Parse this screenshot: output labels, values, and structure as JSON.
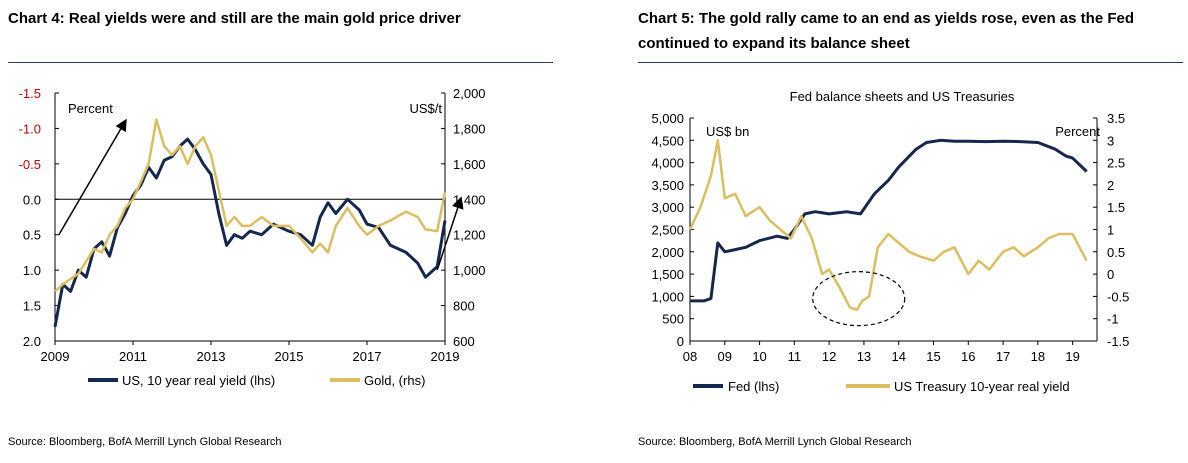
{
  "colors": {
    "navy": "#15274e",
    "gold": "#dcbe5e",
    "red": "#cc0000",
    "rule": "#2a3a5c",
    "ellipse": "#000000"
  },
  "chart4": {
    "title": "Chart 4: Real yields were and still are the main gold price driver",
    "source": "Source: Bloomberg, BofA Merrill Lynch Global Research",
    "lhs_label": "Percent",
    "rhs_label": "US$/t",
    "legend": [
      "US, 10 year real yield (lhs)",
      "Gold, (rhs)"
    ]
  },
  "chart5": {
    "title_line1": "Chart 5: The gold rally came to an end as yields rose, even as the Fed",
    "title_line2": "continued to expand its balance sheet",
    "subtitle": "Fed balance sheets and US Treasuries",
    "source": "Source: Bloomberg, BofA Merrill Lynch Global Research",
    "lhs_label": "US$ bn",
    "rhs_label": "Percent",
    "legend": [
      "Fed (lhs)",
      "US Treasury 10-year real yield"
    ]
  },
  "chart_data": [
    {
      "type": "line",
      "title": "Chart 4: Real yields were and still are the main gold price driver",
      "xlabel": "",
      "ylabel": "Percent",
      "y2label": "US$/t",
      "xlim": [
        2009,
        2019
      ],
      "x_ticks": [
        "2009",
        "2011",
        "2013",
        "2015",
        "2017",
        "2019"
      ],
      "ylim": [
        2.0,
        -1.5
      ],
      "y_inverted": true,
      "y_ticks": [
        "-1.5",
        "-1.0",
        "-0.5",
        "0.0",
        "0.5",
        "1.0",
        "1.5",
        "2.0"
      ],
      "y_negative_ticks_color": "red",
      "y2lim": [
        600,
        2000
      ],
      "y2_ticks": [
        "600",
        "800",
        "1,000",
        "1,200",
        "1,400",
        "1,600",
        "1,800",
        "2,000"
      ],
      "grid": false,
      "zero_line": true,
      "legend_position": "bottom",
      "annotations": [
        "upward arrow 2009-2011",
        "upward arrow 2018-2019"
      ],
      "series": [
        {
          "name": "US, 10 year real yield (lhs)",
          "axis": "lhs",
          "color": "navy",
          "x": [
            2009.0,
            2009.2,
            2009.4,
            2009.6,
            2009.8,
            2010.0,
            2010.2,
            2010.4,
            2010.6,
            2010.8,
            2011.0,
            2011.2,
            2011.4,
            2011.6,
            2011.8,
            2012.0,
            2012.2,
            2012.4,
            2012.6,
            2012.8,
            2013.0,
            2013.2,
            2013.4,
            2013.6,
            2013.8,
            2014.0,
            2014.3,
            2014.6,
            2015.0,
            2015.3,
            2015.6,
            2015.8,
            2016.0,
            2016.2,
            2016.5,
            2016.8,
            2017.0,
            2017.3,
            2017.6,
            2018.0,
            2018.3,
            2018.5,
            2018.8,
            2019.0
          ],
          "y": [
            1.8,
            1.2,
            1.3,
            1.0,
            1.1,
            0.7,
            0.6,
            0.8,
            0.4,
            0.2,
            -0.05,
            -0.2,
            -0.45,
            -0.3,
            -0.55,
            -0.6,
            -0.75,
            -0.85,
            -0.7,
            -0.5,
            -0.35,
            0.2,
            0.65,
            0.5,
            0.55,
            0.45,
            0.5,
            0.35,
            0.45,
            0.5,
            0.65,
            0.25,
            0.05,
            0.2,
            0.0,
            0.15,
            0.35,
            0.4,
            0.65,
            0.75,
            0.9,
            1.1,
            0.95,
            0.3
          ]
        },
        {
          "name": "Gold, (rhs)",
          "axis": "rhs",
          "color": "gold",
          "x": [
            2009.0,
            2009.2,
            2009.4,
            2009.6,
            2009.8,
            2010.0,
            2010.2,
            2010.4,
            2010.6,
            2010.8,
            2011.0,
            2011.2,
            2011.4,
            2011.6,
            2011.8,
            2012.0,
            2012.2,
            2012.4,
            2012.6,
            2012.8,
            2013.0,
            2013.2,
            2013.4,
            2013.6,
            2013.8,
            2014.0,
            2014.3,
            2014.6,
            2015.0,
            2015.3,
            2015.6,
            2015.8,
            2016.0,
            2016.2,
            2016.5,
            2016.8,
            2017.0,
            2017.3,
            2017.6,
            2018.0,
            2018.3,
            2018.5,
            2018.8,
            2019.0
          ],
          "y": [
            880,
            920,
            950,
            980,
            1050,
            1120,
            1100,
            1200,
            1250,
            1350,
            1400,
            1500,
            1600,
            1850,
            1700,
            1650,
            1700,
            1600,
            1700,
            1750,
            1650,
            1450,
            1250,
            1300,
            1250,
            1250,
            1300,
            1250,
            1250,
            1180,
            1100,
            1150,
            1100,
            1250,
            1350,
            1250,
            1200,
            1250,
            1280,
            1330,
            1300,
            1230,
            1220,
            1440
          ]
        }
      ]
    },
    {
      "type": "line",
      "title": "Chart 5: The gold rally came to an end as yields rose, even as the Fed continued to expand its balance sheet",
      "subtitle": "Fed balance sheets and US Treasuries",
      "xlabel": "",
      "ylabel": "US$ bn",
      "y2label": "Percent",
      "xlim": [
        2008,
        2019.7
      ],
      "x_ticks": [
        "08",
        "09",
        "10",
        "11",
        "12",
        "13",
        "14",
        "15",
        "16",
        "17",
        "18",
        "19"
      ],
      "ylim": [
        0,
        5000
      ],
      "y_ticks": [
        "0",
        "500",
        "1,000",
        "1,500",
        "2,000",
        "2,500",
        "3,000",
        "3,500",
        "4,000",
        "4,500",
        "5,000"
      ],
      "y2lim": [
        -1.5,
        3.5
      ],
      "y2_ticks": [
        "-1.5",
        "-1",
        "-0.5",
        "0",
        "0.5",
        "1",
        "1.5",
        "2",
        "2.5",
        "3",
        "3.5"
      ],
      "grid": false,
      "legend_position": "bottom",
      "annotations": [
        "dashed ellipse around 2012-2013 yield trough"
      ],
      "series": [
        {
          "name": "Fed (lhs)",
          "axis": "lhs",
          "color": "navy",
          "x": [
            2008.0,
            2008.4,
            2008.6,
            2008.8,
            2009.0,
            2009.3,
            2009.6,
            2010.0,
            2010.5,
            2010.8,
            2011.0,
            2011.3,
            2011.6,
            2012.0,
            2012.5,
            2012.9,
            2013.3,
            2013.7,
            2014.0,
            2014.5,
            2014.8,
            2015.2,
            2015.6,
            2016.0,
            2016.5,
            2017.0,
            2017.5,
            2018.0,
            2018.5,
            2018.8,
            2019.0,
            2019.4
          ],
          "y": [
            900,
            900,
            950,
            2200,
            2000,
            2050,
            2100,
            2250,
            2350,
            2300,
            2500,
            2850,
            2900,
            2850,
            2900,
            2850,
            3300,
            3600,
            3900,
            4300,
            4450,
            4500,
            4480,
            4480,
            4470,
            4480,
            4470,
            4450,
            4300,
            4150,
            4100,
            3800
          ]
        },
        {
          "name": "US Treasury 10-year real yield",
          "axis": "rhs",
          "color": "gold",
          "x": [
            2008.0,
            2008.3,
            2008.6,
            2008.8,
            2009.0,
            2009.3,
            2009.6,
            2010.0,
            2010.3,
            2010.6,
            2010.9,
            2011.2,
            2011.5,
            2011.8,
            2012.0,
            2012.3,
            2012.6,
            2012.8,
            2012.95,
            2013.15,
            2013.4,
            2013.7,
            2014.0,
            2014.3,
            2014.6,
            2015.0,
            2015.3,
            2015.6,
            2016.0,
            2016.3,
            2016.6,
            2017.0,
            2017.3,
            2017.6,
            2018.0,
            2018.3,
            2018.6,
            2019.0,
            2019.4
          ],
          "y": [
            1.0,
            1.5,
            2.2,
            3.0,
            1.7,
            1.8,
            1.3,
            1.5,
            1.2,
            1.0,
            0.8,
            1.3,
            0.8,
            0.0,
            0.1,
            -0.3,
            -0.75,
            -0.8,
            -0.6,
            -0.5,
            0.6,
            0.9,
            0.7,
            0.5,
            0.4,
            0.3,
            0.5,
            0.6,
            0.0,
            0.3,
            0.1,
            0.5,
            0.6,
            0.4,
            0.6,
            0.8,
            0.9,
            0.9,
            0.3
          ]
        }
      ]
    }
  ]
}
